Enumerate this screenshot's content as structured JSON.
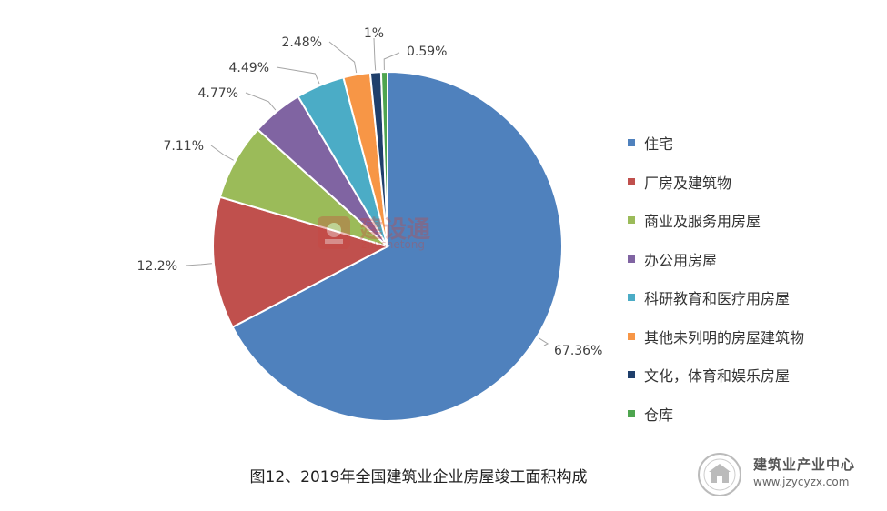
{
  "chart_data": {
    "type": "pie",
    "title": "图12、2019年全国建筑业企业房屋竣工面积构成",
    "slices": [
      {
        "label": "住宅",
        "value": 67.36,
        "display": "67.36%",
        "color": "#4F81BD"
      },
      {
        "label": "厂房及建筑物",
        "value": 12.2,
        "display": "12.2%",
        "color": "#C0504D"
      },
      {
        "label": "商业及服务用房屋",
        "value": 7.11,
        "display": "7.11%",
        "color": "#9BBB59"
      },
      {
        "label": "办公用房屋",
        "value": 4.77,
        "display": "4.77%",
        "color": "#8064A2"
      },
      {
        "label": "科研教育和医疗用房屋",
        "value": 4.49,
        "display": "4.49%",
        "color": "#4BACC6"
      },
      {
        "label": "其他未列明的房屋建筑物",
        "value": 2.48,
        "display": "2.48%",
        "color": "#F79646"
      },
      {
        "label": "文化，体育和娱乐房屋",
        "value": 1.0,
        "display": "1%",
        "color": "#1F3F6B"
      },
      {
        "label": "仓库",
        "value": 0.59,
        "display": "0.59%",
        "color": "#4EA54F"
      }
    ],
    "legend_position": "right"
  },
  "watermark": {
    "text": "建设通",
    "sub": "zhushetong"
  },
  "brand": {
    "name": "建筑业产业中心",
    "url": "www.jzycyzx.com"
  }
}
